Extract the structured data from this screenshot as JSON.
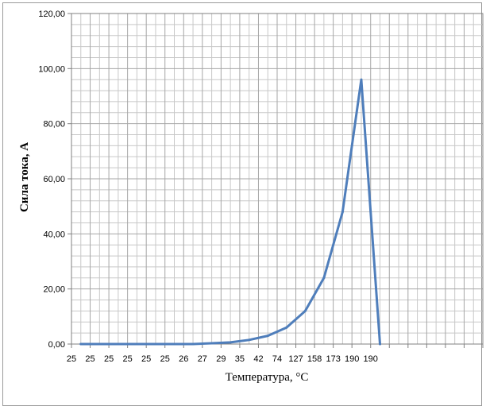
{
  "chart_data": {
    "type": "line",
    "title": "",
    "xlabel": "Температура, °С",
    "ylabel": "Сила тока, А",
    "categories": [
      "25",
      "25",
      "25",
      "25",
      "25",
      "25",
      "26",
      "27",
      "29",
      "35",
      "42",
      "74",
      "127",
      "158",
      "173",
      "190",
      "190"
    ],
    "extra_empty_categories": 5,
    "series": [
      {
        "values": [
          0,
          0,
          0,
          0,
          0,
          0,
          0,
          0.3,
          0.6,
          1.5,
          3,
          6,
          12,
          24,
          48,
          96,
          0
        ]
      }
    ],
    "ylim": [
      0,
      120
    ],
    "yticks": [
      "0,00",
      "20,00",
      "40,00",
      "60,00",
      "80,00",
      "100,00",
      "120,00"
    ],
    "grid": true,
    "line_color": "#4F7EBB",
    "grid_color": "#C8C8C8"
  }
}
